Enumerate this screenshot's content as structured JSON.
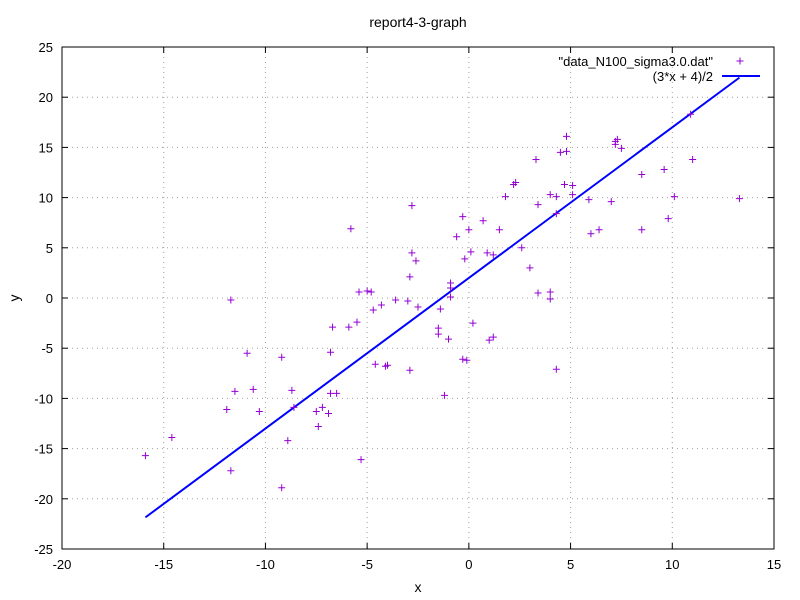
{
  "chart_data": {
    "type": "scatter",
    "title": "report4-3-graph",
    "xlabel": "x",
    "ylabel": "y",
    "xlim": [
      -20,
      15
    ],
    "ylim": [
      -25,
      25
    ],
    "xticks": [
      -20,
      -15,
      -10,
      -5,
      0,
      5,
      10,
      15
    ],
    "yticks": [
      -25,
      -20,
      -15,
      -10,
      -5,
      0,
      5,
      10,
      15,
      20,
      25
    ],
    "grid": true,
    "legend_position": "top-right",
    "series": [
      {
        "name": "\"data_N100_sigma3.0.dat\"",
        "type": "scatter",
        "marker": "+",
        "color": "#9400d3",
        "points": [
          [
            -15.9,
            -15.7
          ],
          [
            -14.6,
            -13.9
          ],
          [
            -11.9,
            -11.1
          ],
          [
            -11.7,
            -0.2
          ],
          [
            -11.7,
            -17.2
          ],
          [
            -11.5,
            -9.3
          ],
          [
            -10.9,
            -5.5
          ],
          [
            -10.6,
            -9.1
          ],
          [
            -10.3,
            -11.3
          ],
          [
            -9.2,
            -5.9
          ],
          [
            -9.2,
            -18.9
          ],
          [
            -8.9,
            -14.2
          ],
          [
            -8.7,
            -9.2
          ],
          [
            -8.6,
            -10.9
          ],
          [
            -7.5,
            -11.3
          ],
          [
            -7.4,
            -12.8
          ],
          [
            -7.2,
            -10.9
          ],
          [
            -6.9,
            -11.5
          ],
          [
            -6.8,
            -5.4
          ],
          [
            -6.8,
            -9.5
          ],
          [
            -6.7,
            -2.9
          ],
          [
            -6.5,
            -9.5
          ],
          [
            -5.9,
            -2.9
          ],
          [
            -5.8,
            6.9
          ],
          [
            -5.5,
            -2.4
          ],
          [
            -5.4,
            0.6
          ],
          [
            -5.3,
            -16.1
          ],
          [
            -5.0,
            0.7
          ],
          [
            -4.8,
            0.6
          ],
          [
            -4.7,
            -1.2
          ],
          [
            -4.6,
            -6.6
          ],
          [
            -4.3,
            -0.7
          ],
          [
            -4.1,
            -6.8
          ],
          [
            -4.0,
            -6.7
          ],
          [
            -3.6,
            -0.2
          ],
          [
            -3.0,
            -0.3
          ],
          [
            -2.9,
            -7.2
          ],
          [
            -2.9,
            2.1
          ],
          [
            -2.8,
            4.5
          ],
          [
            -2.8,
            9.2
          ],
          [
            -2.6,
            3.7
          ],
          [
            -2.5,
            -0.9
          ],
          [
            -1.5,
            -3.0
          ],
          [
            -1.5,
            -3.6
          ],
          [
            -1.4,
            -1.1
          ],
          [
            -1.2,
            -9.7
          ],
          [
            -1.0,
            -4.1
          ],
          [
            -0.9,
            0.1
          ],
          [
            -0.9,
            1.5
          ],
          [
            -0.9,
            1.0
          ],
          [
            -0.6,
            6.1
          ],
          [
            -0.3,
            8.1
          ],
          [
            -0.3,
            -6.1
          ],
          [
            -0.2,
            3.9
          ],
          [
            -0.1,
            -6.2
          ],
          [
            0.0,
            6.8
          ],
          [
            0.1,
            4.6
          ],
          [
            0.2,
            -2.5
          ],
          [
            0.7,
            7.7
          ],
          [
            0.9,
            4.5
          ],
          [
            1.0,
            -4.2
          ],
          [
            1.2,
            4.3
          ],
          [
            1.2,
            -3.9
          ],
          [
            1.5,
            6.8
          ],
          [
            1.8,
            10.1
          ],
          [
            2.2,
            11.3
          ],
          [
            2.3,
            11.5
          ],
          [
            2.6,
            5.0
          ],
          [
            3.0,
            3.0
          ],
          [
            3.3,
            13.8
          ],
          [
            3.4,
            9.3
          ],
          [
            3.4,
            0.5
          ],
          [
            4.0,
            0.6
          ],
          [
            4.0,
            10.3
          ],
          [
            4.0,
            -0.1
          ],
          [
            4.3,
            10.1
          ],
          [
            4.3,
            8.4
          ],
          [
            4.3,
            -7.1
          ],
          [
            4.5,
            14.5
          ],
          [
            4.7,
            11.3
          ],
          [
            4.8,
            14.6
          ],
          [
            4.8,
            16.1
          ],
          [
            5.1,
            11.2
          ],
          [
            5.1,
            10.3
          ],
          [
            5.9,
            9.8
          ],
          [
            6.0,
            6.4
          ],
          [
            6.4,
            6.8
          ],
          [
            7.0,
            9.6
          ],
          [
            7.2,
            15.3
          ],
          [
            7.2,
            15.6
          ],
          [
            7.3,
            15.8
          ],
          [
            7.5,
            14.9
          ],
          [
            8.5,
            12.3
          ],
          [
            8.5,
            6.8
          ],
          [
            9.6,
            12.8
          ],
          [
            9.8,
            7.9
          ],
          [
            10.1,
            10.1
          ],
          [
            10.9,
            18.3
          ],
          [
            11.0,
            13.8
          ],
          [
            13.3,
            9.9
          ]
        ]
      },
      {
        "name": "(3*x + 4)/2",
        "type": "line",
        "color": "#0000ff",
        "x_range": [
          -15.9,
          13.3
        ],
        "y_range": [
          -21.85,
          21.95
        ]
      }
    ]
  }
}
